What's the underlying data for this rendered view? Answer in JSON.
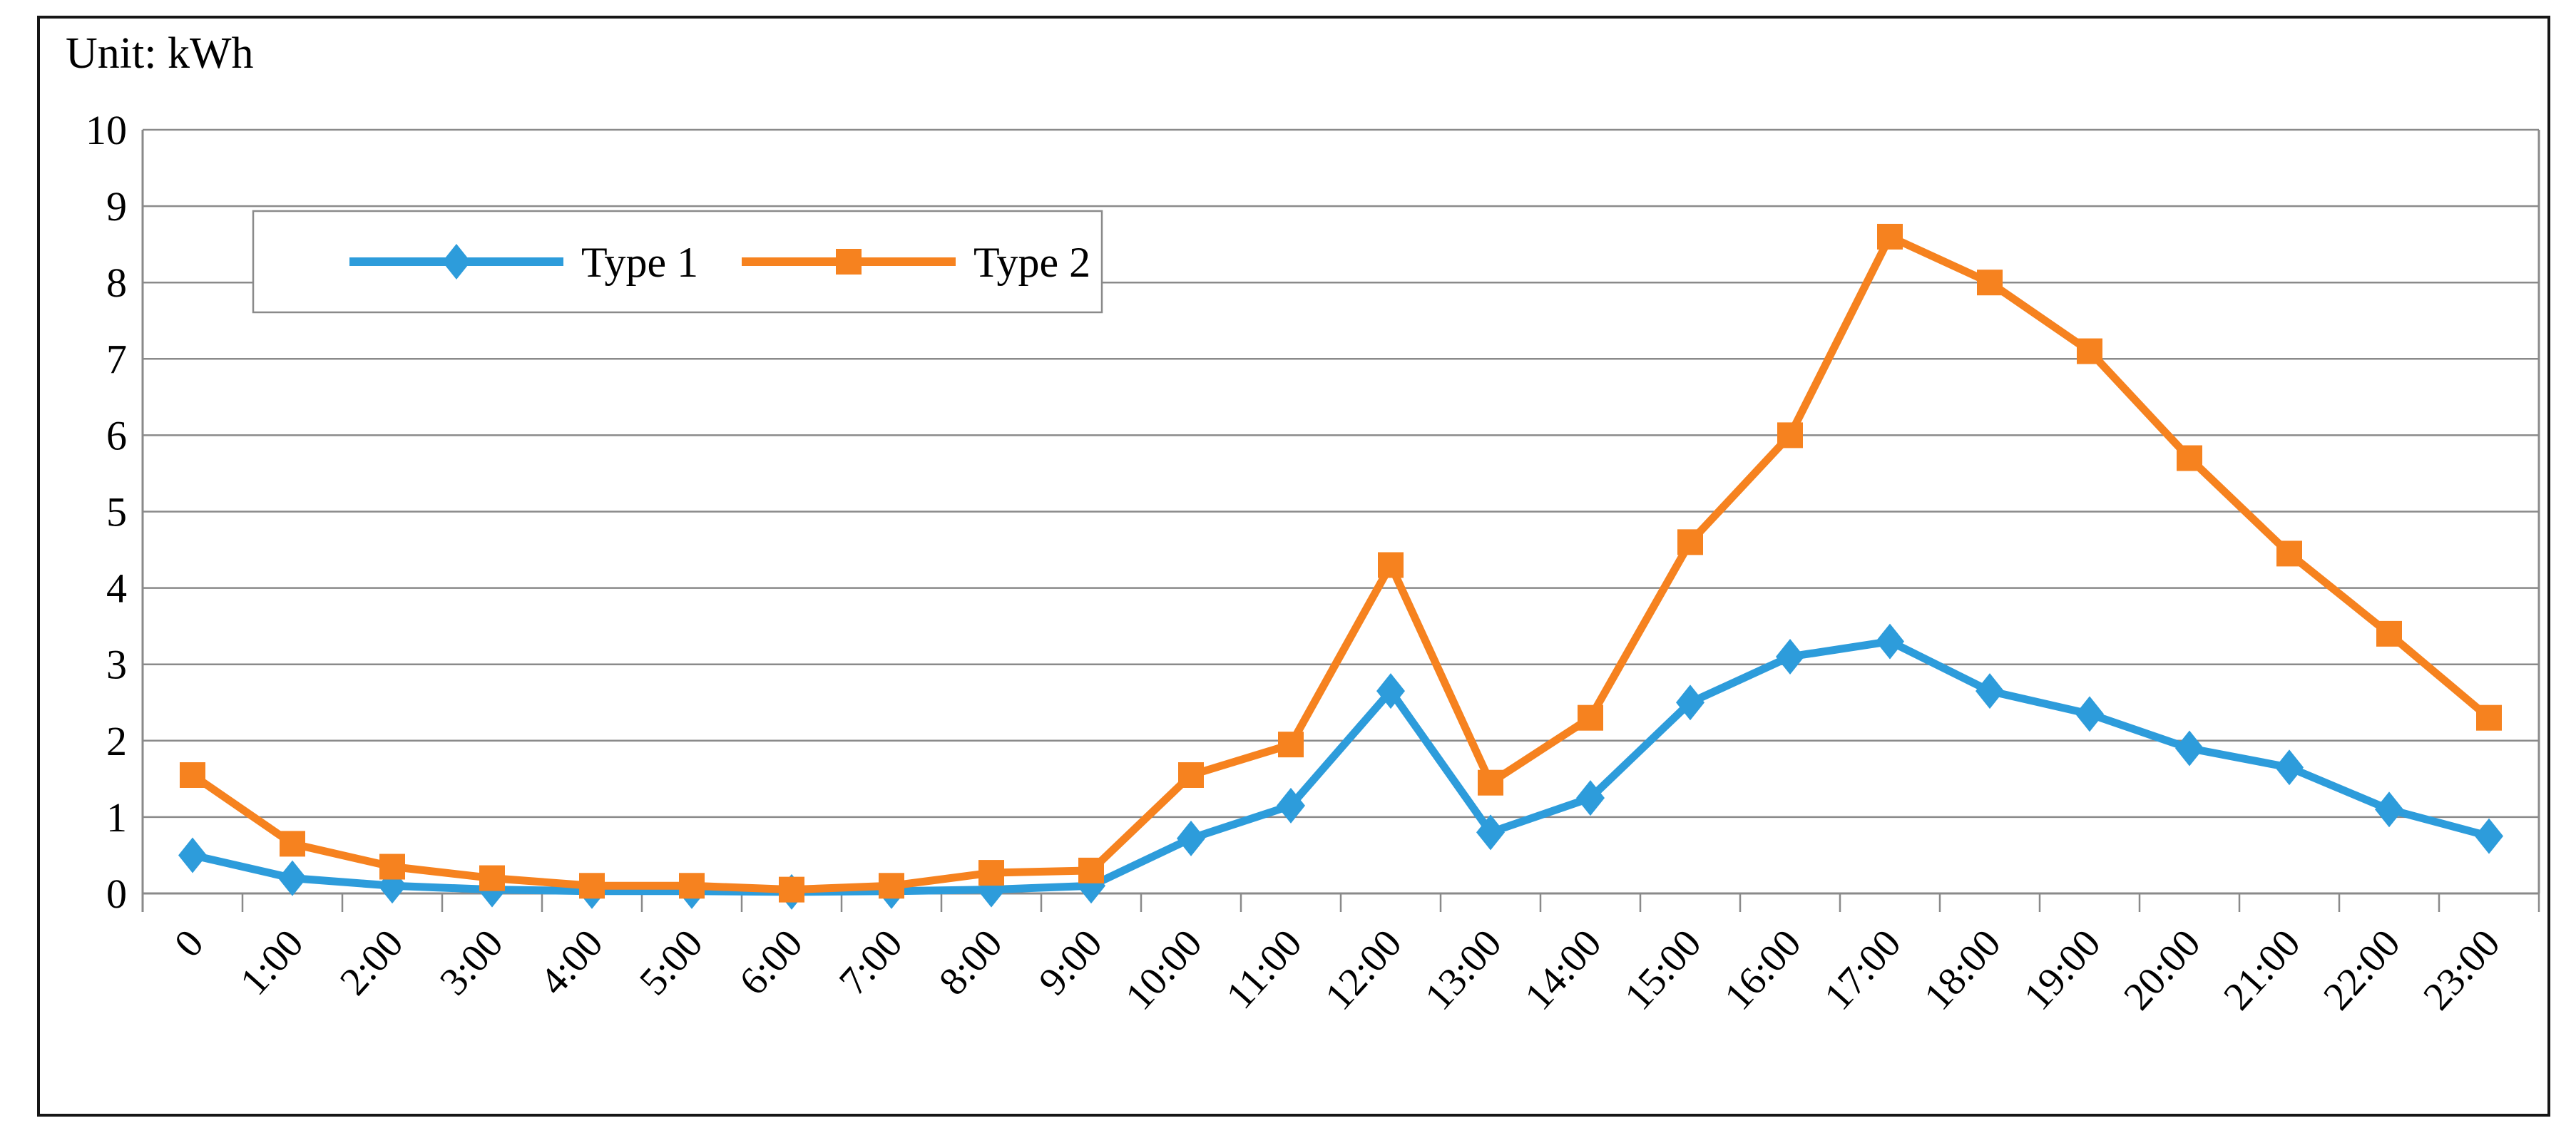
{
  "figure": {
    "unit_label": "Unit: kWh"
  },
  "chart_data": {
    "type": "line",
    "title": "",
    "unit_annotation": "Unit: kWh",
    "xlabel": "",
    "ylabel": "",
    "ylim": [
      0,
      10
    ],
    "y_tick_step": 1,
    "y_ticks": [
      "10",
      "9",
      "8",
      "7",
      "6",
      "5",
      "4",
      "3",
      "2",
      "1",
      "0"
    ],
    "grid": "horizontal",
    "legend_position": "top-left-inside",
    "categories": [
      "0",
      "1:00",
      "2:00",
      "3:00",
      "4:00",
      "5:00",
      "6:00",
      "7:00",
      "8:00",
      "9:00",
      "10:00",
      "11:00",
      "12:00",
      "13:00",
      "14:00",
      "15:00",
      "16:00",
      "17:00",
      "18:00",
      "19:00",
      "20:00",
      "21:00",
      "22:00",
      "23:00"
    ],
    "series": [
      {
        "name": "Type 1",
        "marker": "diamond",
        "color": "#2D9CDB",
        "values": [
          0.5,
          0.2,
          0.1,
          0.05,
          0.03,
          0.03,
          0.02,
          0.03,
          0.05,
          0.1,
          0.72,
          1.15,
          2.65,
          0.8,
          1.25,
          2.5,
          3.1,
          3.3,
          2.65,
          2.35,
          1.9,
          1.65,
          1.1,
          0.75
        ]
      },
      {
        "name": "Type 2",
        "marker": "square",
        "color": "#F6821F",
        "values": [
          1.55,
          0.65,
          0.35,
          0.2,
          0.1,
          0.1,
          0.05,
          0.1,
          0.27,
          0.3,
          1.55,
          1.95,
          4.3,
          1.45,
          2.3,
          4.6,
          6.0,
          8.6,
          8.0,
          7.1,
          5.7,
          4.45,
          3.4,
          2.3
        ]
      }
    ],
    "colors": {
      "series1": "#2D9CDB",
      "series2": "#F6821F",
      "gridline": "#8A8A8A",
      "axis": "#8A8A8A",
      "frame_border": "#161616",
      "legend_border": "#8A8A8A",
      "legend_fill": "#FFFFFF",
      "text": "#000000",
      "background": "#FFFFFF"
    }
  }
}
